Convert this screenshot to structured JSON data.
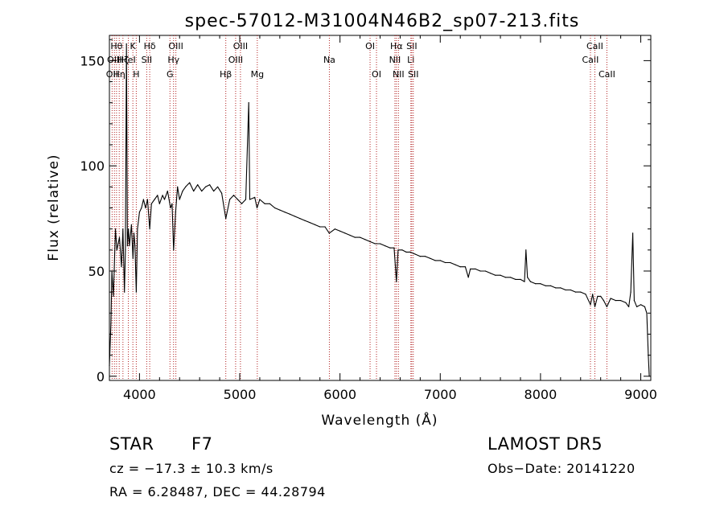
{
  "chart_data": {
    "type": "line",
    "title": "spec-57012-M31004N46B2_sp07-213.fits",
    "xlabel": "Wavelength (Å)",
    "ylabel": "Flux (relative)",
    "xlim": [
      3700,
      9100
    ],
    "ylim": [
      -2,
      162
    ],
    "xticks": [
      4000,
      5000,
      6000,
      7000,
      8000,
      9000
    ],
    "yticks": [
      0,
      50,
      100,
      150
    ],
    "xtick_labels": [
      "4000",
      "5000",
      "6000",
      "7000",
      "8000",
      "9000"
    ],
    "ytick_labels": [
      "0",
      "50",
      "100",
      "150"
    ],
    "grid": false,
    "series": [
      {
        "color": "#000000",
        "points": [
          [
            3700,
            5
          ],
          [
            3715,
            25
          ],
          [
            3725,
            50
          ],
          [
            3740,
            38
          ],
          [
            3760,
            70
          ],
          [
            3775,
            60
          ],
          [
            3800,
            66
          ],
          [
            3820,
            52
          ],
          [
            3835,
            70
          ],
          [
            3850,
            40
          ],
          [
            3860,
            60
          ],
          [
            3870,
            158
          ],
          [
            3880,
            62
          ],
          [
            3890,
            70
          ],
          [
            3900,
            62
          ],
          [
            3920,
            72
          ],
          [
            3935,
            56
          ],
          [
            3945,
            68
          ],
          [
            3955,
            62
          ],
          [
            3968,
            40
          ],
          [
            3980,
            70
          ],
          [
            4000,
            78
          ],
          [
            4020,
            80
          ],
          [
            4040,
            84
          ],
          [
            4060,
            80
          ],
          [
            4080,
            84
          ],
          [
            4102,
            70
          ],
          [
            4120,
            82
          ],
          [
            4150,
            84
          ],
          [
            4180,
            86
          ],
          [
            4200,
            82
          ],
          [
            4230,
            86
          ],
          [
            4250,
            84
          ],
          [
            4280,
            88
          ],
          [
            4310,
            80
          ],
          [
            4325,
            82
          ],
          [
            4340,
            60
          ],
          [
            4360,
            78
          ],
          [
            4380,
            90
          ],
          [
            4400,
            84
          ],
          [
            4430,
            88
          ],
          [
            4460,
            90
          ],
          [
            4500,
            92
          ],
          [
            4540,
            88
          ],
          [
            4580,
            91
          ],
          [
            4620,
            88
          ],
          [
            4660,
            90
          ],
          [
            4700,
            91
          ],
          [
            4740,
            88
          ],
          [
            4780,
            90
          ],
          [
            4820,
            87
          ],
          [
            4861,
            75
          ],
          [
            4900,
            84
          ],
          [
            4940,
            86
          ],
          [
            4980,
            84
          ],
          [
            5020,
            82
          ],
          [
            5060,
            84
          ],
          [
            5090,
            130
          ],
          [
            5100,
            84
          ],
          [
            5150,
            85
          ],
          [
            5172,
            80
          ],
          [
            5200,
            84
          ],
          [
            5250,
            82
          ],
          [
            5300,
            82
          ],
          [
            5350,
            80
          ],
          [
            5400,
            79
          ],
          [
            5450,
            78
          ],
          [
            5500,
            77
          ],
          [
            5550,
            76
          ],
          [
            5600,
            75
          ],
          [
            5650,
            74
          ],
          [
            5700,
            73
          ],
          [
            5750,
            72
          ],
          [
            5800,
            71
          ],
          [
            5850,
            71
          ],
          [
            5893,
            68
          ],
          [
            5950,
            70
          ],
          [
            6000,
            69
          ],
          [
            6050,
            68
          ],
          [
            6100,
            67
          ],
          [
            6150,
            66
          ],
          [
            6200,
            66
          ],
          [
            6250,
            65
          ],
          [
            6300,
            64
          ],
          [
            6350,
            63
          ],
          [
            6400,
            63
          ],
          [
            6450,
            62
          ],
          [
            6500,
            61
          ],
          [
            6540,
            61
          ],
          [
            6563,
            45
          ],
          [
            6580,
            60
          ],
          [
            6620,
            60
          ],
          [
            6660,
            59
          ],
          [
            6700,
            59
          ],
          [
            6750,
            58
          ],
          [
            6800,
            57
          ],
          [
            6850,
            57
          ],
          [
            6900,
            56
          ],
          [
            6950,
            55
          ],
          [
            7000,
            55
          ],
          [
            7050,
            54
          ],
          [
            7100,
            54
          ],
          [
            7150,
            53
          ],
          [
            7200,
            52
          ],
          [
            7250,
            52
          ],
          [
            7280,
            47
          ],
          [
            7300,
            51
          ],
          [
            7350,
            51
          ],
          [
            7400,
            50
          ],
          [
            7450,
            50
          ],
          [
            7500,
            49
          ],
          [
            7550,
            48
          ],
          [
            7600,
            48
          ],
          [
            7650,
            47
          ],
          [
            7700,
            47
          ],
          [
            7750,
            46
          ],
          [
            7800,
            46
          ],
          [
            7840,
            45
          ],
          [
            7855,
            60
          ],
          [
            7870,
            47
          ],
          [
            7900,
            45
          ],
          [
            7950,
            44
          ],
          [
            8000,
            44
          ],
          [
            8050,
            43
          ],
          [
            8100,
            43
          ],
          [
            8150,
            42
          ],
          [
            8200,
            42
          ],
          [
            8250,
            41
          ],
          [
            8300,
            41
          ],
          [
            8350,
            40
          ],
          [
            8400,
            40
          ],
          [
            8450,
            39
          ],
          [
            8498,
            34
          ],
          [
            8520,
            39
          ],
          [
            8542,
            33
          ],
          [
            8570,
            38
          ],
          [
            8600,
            38
          ],
          [
            8630,
            36
          ],
          [
            8662,
            33
          ],
          [
            8700,
            37
          ],
          [
            8750,
            36
          ],
          [
            8800,
            36
          ],
          [
            8850,
            35
          ],
          [
            8880,
            33
          ],
          [
            8900,
            40
          ],
          [
            8920,
            68
          ],
          [
            8935,
            36
          ],
          [
            8960,
            33
          ],
          [
            9000,
            34
          ],
          [
            9040,
            33
          ],
          [
            9060,
            30
          ],
          [
            9075,
            10
          ],
          [
            9085,
            0
          ]
        ]
      }
    ],
    "line_markers": [
      {
        "wavelength": 3727,
        "label": "OII",
        "row": 2
      },
      {
        "wavelength": 3750,
        "label": "OIII",
        "row": 1
      },
      {
        "wavelength": 3771,
        "label": "Hθ",
        "row": 0
      },
      {
        "wavelength": 3798,
        "label": "Hη",
        "row": 2
      },
      {
        "wavelength": 3835,
        "label": "Hζ",
        "row": 1
      },
      {
        "wavelength": 3889,
        "label": "HeI",
        "row": 1
      },
      {
        "wavelength": 3934,
        "label": "K",
        "row": 0
      },
      {
        "wavelength": 3968,
        "label": "H",
        "row": 2
      },
      {
        "wavelength": 4072,
        "label": "SII",
        "row": 1
      },
      {
        "wavelength": 4102,
        "label": "Hδ",
        "row": 0
      },
      {
        "wavelength": 4304,
        "label": "G",
        "row": 2
      },
      {
        "wavelength": 4340,
        "label": "Hγ",
        "row": 1
      },
      {
        "wavelength": 4363,
        "label": "OIII",
        "row": 0
      },
      {
        "wavelength": 4861,
        "label": "Hβ",
        "row": 2
      },
      {
        "wavelength": 4959,
        "label": "OIII",
        "row": 1
      },
      {
        "wavelength": 5007,
        "label": "OIII",
        "row": 0
      },
      {
        "wavelength": 5175,
        "label": "Mg",
        "row": 2
      },
      {
        "wavelength": 5894,
        "label": "Na",
        "row": 1
      },
      {
        "wavelength": 6300,
        "label": "OI",
        "row": 0
      },
      {
        "wavelength": 6364,
        "label": "OI",
        "row": 2
      },
      {
        "wavelength": 6548,
        "label": "NII",
        "row": 1
      },
      {
        "wavelength": 6563,
        "label": "Hα",
        "row": 0
      },
      {
        "wavelength": 6583,
        "label": "NII",
        "row": 2
      },
      {
        "wavelength": 6707,
        "label": "Li",
        "row": 1
      },
      {
        "wavelength": 6716,
        "label": "SII",
        "row": 0
      },
      {
        "wavelength": 6731,
        "label": "SII",
        "row": 2
      },
      {
        "wavelength": 8498,
        "label": "CaII",
        "row": 1
      },
      {
        "wavelength": 8542,
        "label": "CaII",
        "row": 0
      },
      {
        "wavelength": 8662,
        "label": "CaII",
        "row": 2
      }
    ],
    "line_marker_color": "#b22222"
  },
  "info": {
    "object_class": "STAR",
    "subclass": "F7",
    "survey": "LAMOST DR5",
    "cz": "cz = −17.3 ± 10.3 km/s",
    "obs_date": "Obs−Date: 20141220",
    "coords": "RA =    6.28487, DEC =  44.28794"
  }
}
